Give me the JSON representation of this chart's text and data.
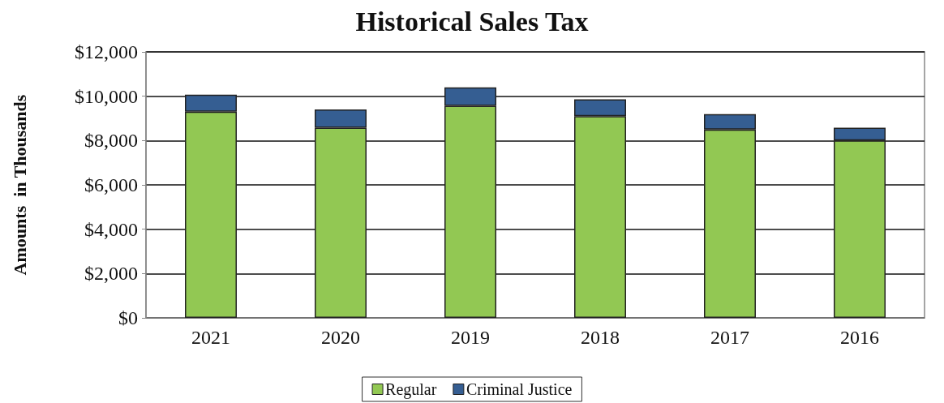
{
  "chart_data": {
    "type": "bar",
    "title": "Historical Sales Tax",
    "ylabel": "Amounts  in Thousands",
    "categories": [
      "2021",
      "2020",
      "2019",
      "2018",
      "2017",
      "2016"
    ],
    "stacked": true,
    "series": [
      {
        "name": "Regular",
        "color": "#92c853",
        "values": [
          9300,
          8580,
          9570,
          9100,
          8500,
          8000
        ]
      },
      {
        "name": "Criminal Justice",
        "color": "#355e92",
        "values": [
          770,
          820,
          830,
          760,
          690,
          580
        ]
      }
    ],
    "ylim": [
      0,
      12000
    ],
    "yticks": [
      {
        "value": 0,
        "label": "$0"
      },
      {
        "value": 2000,
        "label": "$2,000"
      },
      {
        "value": 4000,
        "label": "$4,000"
      },
      {
        "value": 6000,
        "label": "$6,000"
      },
      {
        "value": 8000,
        "label": "$8,000"
      },
      {
        "value": 10000,
        "label": "$10,000"
      },
      {
        "value": 12000,
        "label": "$12,000"
      }
    ],
    "grid": "y",
    "legend": "bottom"
  }
}
